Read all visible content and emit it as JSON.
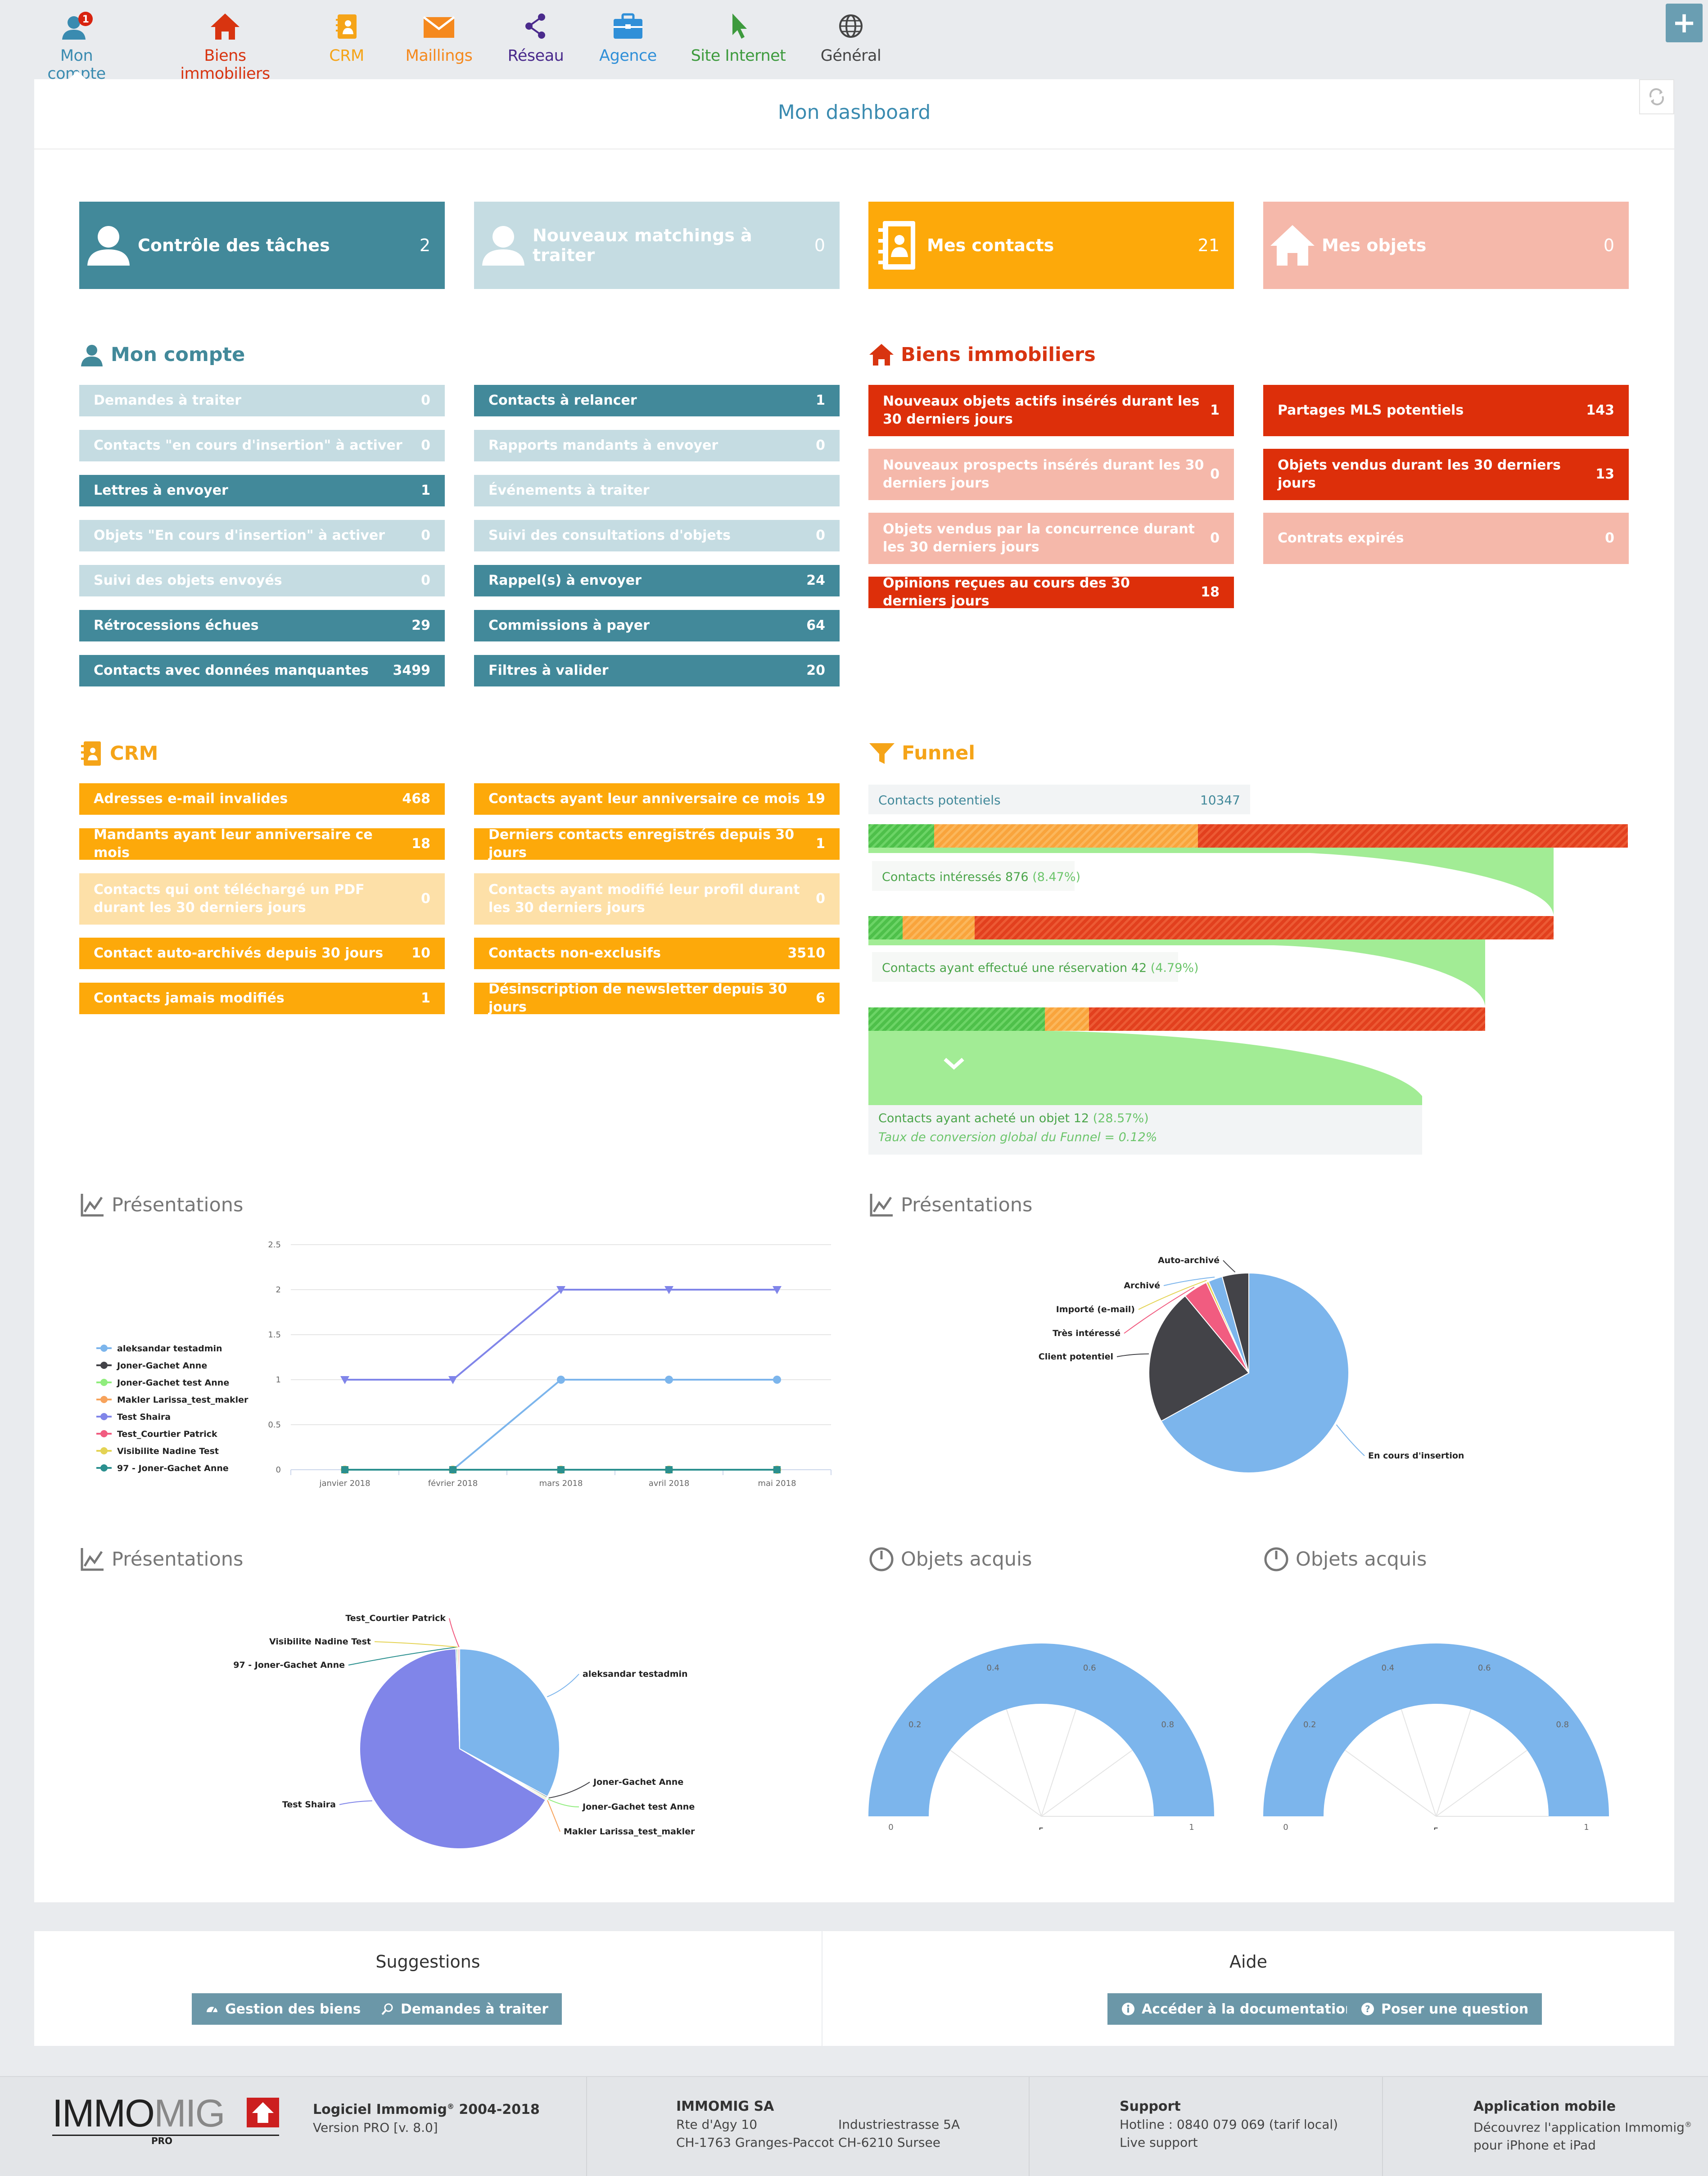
{
  "nav": {
    "items": [
      {
        "label": "Mon compte",
        "color": "#3a8bb0",
        "badge": "1"
      },
      {
        "label": "Biens immobiliers",
        "color": "#d83410"
      },
      {
        "label": "CRM",
        "color": "#f5a418"
      },
      {
        "label": "Maillings",
        "color": "#f5891e"
      },
      {
        "label": "Réseau",
        "color": "#4a2a8c"
      },
      {
        "label": "Agence",
        "color": "#2f8fd8"
      },
      {
        "label": "Site Internet",
        "color": "#3d9a3d"
      },
      {
        "label": "Général",
        "color": "#444444"
      }
    ],
    "plus": "+"
  },
  "dashboard": {
    "title": "Mon dashboard"
  },
  "cards": [
    {
      "label": "Contrôle des tâches",
      "value": "2"
    },
    {
      "label": "Nouveaux matchings à traiter",
      "value": "0"
    },
    {
      "label": "Mes contacts",
      "value": "21"
    },
    {
      "label": "Mes objets",
      "value": "0"
    }
  ],
  "mon_compte": {
    "title": "Mon compte",
    "left": [
      {
        "label": "Demandes à traiter",
        "value": "0"
      },
      {
        "label": "Contacts \"en cours d'insertion\" à activer",
        "value": "0"
      },
      {
        "label": "Lettres à envoyer",
        "value": "1"
      },
      {
        "label": "Objets \"En cours d'insertion\" à activer",
        "value": "0"
      },
      {
        "label": "Suivi des objets envoyés",
        "value": "0"
      },
      {
        "label": "Rétrocessions échues",
        "value": "29"
      },
      {
        "label": "Contacts avec données manquantes",
        "value": "3499"
      }
    ],
    "right": [
      {
        "label": "Contacts à relancer",
        "value": "1"
      },
      {
        "label": "Rapports mandants à envoyer",
        "value": "0"
      },
      {
        "label": "Événements à traiter",
        "value": ""
      },
      {
        "label": "Suivi des consultations d'objets",
        "value": "0"
      },
      {
        "label": "Rappel(s) à envoyer",
        "value": "24"
      },
      {
        "label": "Commissions à payer",
        "value": "64"
      },
      {
        "label": "Filtres à valider",
        "value": "20"
      }
    ]
  },
  "biens": {
    "title": "Biens immobiliers",
    "left": [
      {
        "label": "Nouveaux objets actifs insérés durant les 30 derniers jours",
        "value": "1"
      },
      {
        "label": "Nouveaux prospects insérés durant les 30 derniers jours",
        "value": "0"
      },
      {
        "label": "Objets vendus par la concurrence durant les 30 derniers jours",
        "value": "0"
      },
      {
        "label": "Opinions reçues au cours des 30 derniers jours",
        "value": "18"
      }
    ],
    "right": [
      {
        "label": "Partages MLS potentiels",
        "value": "143"
      },
      {
        "label": "Objets vendus durant les 30 derniers jours",
        "value": "13"
      },
      {
        "label": "Contrats expirés",
        "value": "0"
      }
    ]
  },
  "crm": {
    "title": "CRM",
    "left": [
      {
        "label": "Adresses e-mail invalides",
        "value": "468"
      },
      {
        "label": "Mandants ayant leur anniversaire ce mois",
        "value": "18"
      },
      {
        "label": "Contacts qui ont téléchargé un PDF durant les 30 derniers jours",
        "value": "0"
      },
      {
        "label": "Contact auto-archivés depuis 30 jours",
        "value": "10"
      },
      {
        "label": "Contacts jamais modifiés",
        "value": "1"
      }
    ],
    "right": [
      {
        "label": "Contacts ayant leur anniversaire ce mois",
        "value": "19"
      },
      {
        "label": "Derniers contacts enregistrés depuis 30 jours",
        "value": "1"
      },
      {
        "label": "Contacts ayant modifié leur profil durant les 30 derniers jours",
        "value": "0"
      },
      {
        "label": "Contacts non-exclusifs",
        "value": "3510"
      },
      {
        "label": "Désinscription de newsletter depuis 30 jours",
        "value": "6"
      }
    ]
  },
  "funnel": {
    "title": "Funnel",
    "stages": [
      {
        "label": "Contacts potentiels",
        "value": "10347",
        "pct": ""
      },
      {
        "label": "Contacts intéressés",
        "value": "876",
        "pct": "(8.47%)"
      },
      {
        "label": "Contacts ayant effectué une réservation",
        "value": "42",
        "pct": "(4.79%)"
      },
      {
        "label": "Contacts ayant acheté un objet",
        "value": "12",
        "pct": "(28.57%)"
      }
    ],
    "conversion": "Taux de conversion global du Funnel = 0.12%"
  },
  "chart_data": [
    {
      "type": "line",
      "title": "Présentations",
      "categories": [
        "janvier 2018",
        "février 2018",
        "mars 2018",
        "avril 2018",
        "mai 2018"
      ],
      "yticks": [
        "0",
        "0.5",
        "1",
        "1.5",
        "2",
        "2.5"
      ],
      "ylim": [
        0,
        2.5
      ],
      "legend": "left",
      "series": [
        {
          "name": "aleksandar testadmin",
          "color": "#7cb5ec",
          "values": [
            0,
            0,
            1,
            1,
            1
          ]
        },
        {
          "name": "Joner-Gachet Anne",
          "color": "#434348",
          "values": [
            0,
            0,
            0,
            0,
            0
          ]
        },
        {
          "name": "Joner-Gachet test Anne",
          "color": "#90ed7d",
          "values": [
            0,
            0,
            0,
            0,
            0
          ]
        },
        {
          "name": "Makler Larissa_test_makler",
          "color": "#f7a35c",
          "values": [
            0,
            0,
            0,
            0,
            0
          ]
        },
        {
          "name": "Test Shaira",
          "color": "#8085e9",
          "values": [
            1,
            1,
            2,
            2,
            2
          ]
        },
        {
          "name": "Test_Courtier Patrick",
          "color": "#f15c80",
          "values": [
            0,
            0,
            0,
            0,
            0
          ]
        },
        {
          "name": "Visibilite Nadine Test",
          "color": "#e4d354",
          "values": [
            0,
            0,
            0,
            0,
            0
          ]
        },
        {
          "name": "97 - Joner-Gachet Anne",
          "color": "#2b908f",
          "values": [
            0,
            0,
            0,
            0,
            0
          ]
        }
      ]
    },
    {
      "type": "pie",
      "title": "Présentations",
      "slices": [
        {
          "name": "En cours d'insertion",
          "value": 67,
          "color": "#7cb5ec"
        },
        {
          "name": "Client potentiel",
          "value": 22,
          "color": "#434348"
        },
        {
          "name": "Très intéressé",
          "value": 4,
          "color": "#f15c80"
        },
        {
          "name": "Importé (e-mail)",
          "value": 0.4,
          "color": "#e4d354"
        },
        {
          "name": "Archivé",
          "value": 2.3,
          "color": "#7cb5ec"
        },
        {
          "name": "Auto-archivé",
          "value": 4.3,
          "color": "#434348"
        }
      ]
    },
    {
      "type": "pie",
      "title": "Présentations",
      "slices": [
        {
          "name": "aleksandar testadmin",
          "value": 33,
          "color": "#7cb5ec"
        },
        {
          "name": "Joner-Gachet Anne",
          "value": 0.2,
          "color": "#434348"
        },
        {
          "name": "Joner-Gachet test Anne",
          "value": 0.2,
          "color": "#90ed7d"
        },
        {
          "name": "Makler Larissa_test_makler",
          "value": 0.2,
          "color": "#f7a35c"
        },
        {
          "name": "Test Shaira",
          "value": 66,
          "color": "#8085e9"
        },
        {
          "name": "97 - Joner-Gachet Anne",
          "value": 0.2,
          "color": "#2b908f"
        },
        {
          "name": "Visibilite Nadine Test",
          "value": 0.2,
          "color": "#e4d354"
        },
        {
          "name": "Test_Courtier Patrick",
          "value": 0.2,
          "color": "#f15c80"
        }
      ]
    },
    {
      "type": "gauge",
      "title": "Objets acquis",
      "min": "0",
      "max": "1",
      "value": "5",
      "ticks": [
        "0.2",
        "0.4",
        "0.6",
        "0.8"
      ]
    },
    {
      "type": "gauge",
      "title": "Objets acquis",
      "min": "0",
      "max": "1",
      "value": "5",
      "ticks": [
        "0.2",
        "0.4",
        "0.6",
        "0.8"
      ]
    }
  ],
  "suggestions": {
    "title": "Suggestions",
    "buttons": [
      "Gestion des biens",
      "Demandes à traiter"
    ]
  },
  "aide": {
    "title": "Aide",
    "buttons": [
      "Accéder à la documentation",
      "Poser une question"
    ]
  },
  "footer": {
    "logo_left": "IMMO",
    "logo_mid": "MIG",
    "logo_sub": "PRO",
    "software": "Logiciel Immomig",
    "software_reg": "®",
    "software_years": " 2004-2018",
    "version": "Version PRO [v. 8.0]",
    "company": "IMMOMIG SA",
    "addr1_l1": "Rte d'Agy 10",
    "addr1_l2": "CH-1763 Granges-Paccot",
    "addr2_l1": "Industriestrasse 5A",
    "addr2_l2": "CH-6210 Sursee",
    "support_title": "Support",
    "hotline": "Hotline : 0840 079 069 (tarif local)",
    "live": "Live support",
    "app_title": "Application mobile",
    "app_l1": "Découvrez l'application Immomig",
    "app_reg": "®",
    "app_l2": "pour iPhone et iPad"
  }
}
